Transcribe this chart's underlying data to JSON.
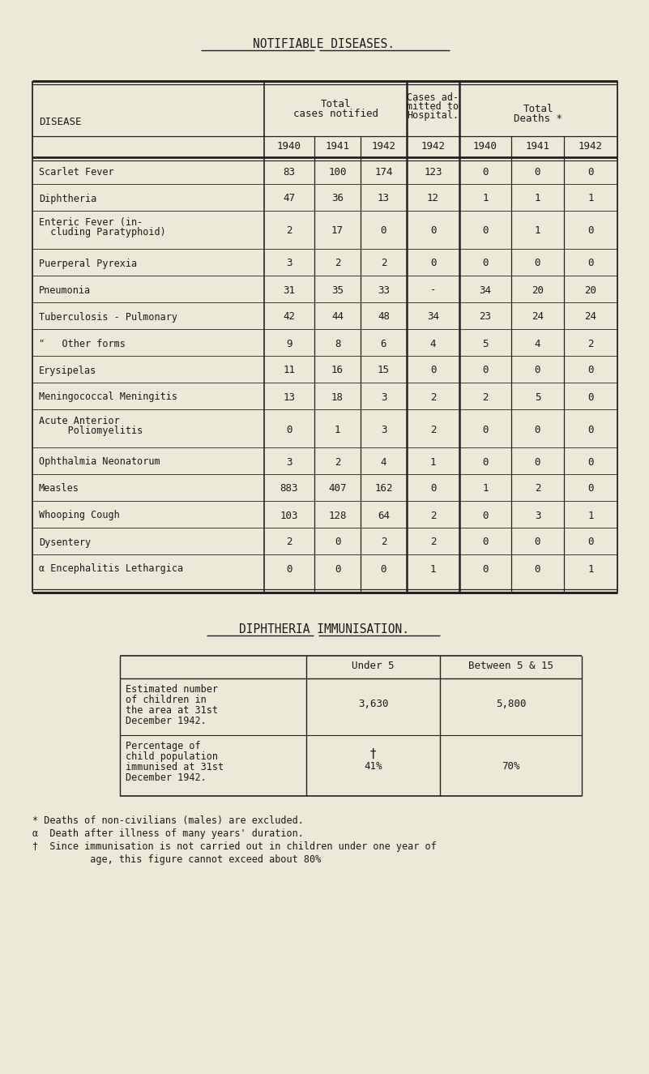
{
  "title": "NOTIFIABLE DISEASES.",
  "bg_color": "#ede9d8",
  "text_color": "#1a1a1a",
  "main_table": {
    "rows": [
      [
        "Scarlet Fever",
        "83",
        "100",
        "174",
        "123",
        "0",
        "0",
        "0"
      ],
      [
        "Diphtheria",
        "47",
        "36",
        "13",
        "12",
        "1",
        "1",
        "1"
      ],
      [
        "Enteric Fever (in-\n  cluding Paratyphoid)",
        "2",
        "17",
        "0",
        "0",
        "0",
        "1",
        "0"
      ],
      [
        "Puerperal Pyrexia",
        "3",
        "2",
        "2",
        "0",
        "0",
        "0",
        "0"
      ],
      [
        "Pneumonia",
        "31",
        "35",
        "33",
        "-",
        "34",
        "20",
        "20"
      ],
      [
        "Tuberculosis - Pulmonary",
        "42",
        "44",
        "48",
        "34",
        "23",
        "24",
        "24"
      ],
      [
        "\"   Other forms",
        "9",
        "8",
        "6",
        "4",
        "5",
        "4",
        "2"
      ],
      [
        "Erysipelas",
        "11",
        "16",
        "15",
        "0",
        "0",
        "0",
        "0"
      ],
      [
        "Meningococcal Meningitis",
        "13",
        "18",
        "3",
        "2",
        "2",
        "5",
        "0"
      ],
      [
        "Acute Anterior\n     Poliomyelitis",
        "0",
        "1",
        "3",
        "2",
        "0",
        "0",
        "0"
      ],
      [
        "Ophthalmia Neonatorum",
        "3",
        "2",
        "4",
        "1",
        "0",
        "0",
        "0"
      ],
      [
        "Measles",
        "883",
        "407",
        "162",
        "0",
        "1",
        "2",
        "0"
      ],
      [
        "Whooping Cough",
        "103",
        "128",
        "64",
        "2",
        "0",
        "3",
        "1"
      ],
      [
        "Dysentery",
        "2",
        "0",
        "2",
        "2",
        "0",
        "0",
        "0"
      ],
      [
        "α Encephalitis Lethargica",
        "0",
        "0",
        "0",
        "1",
        "0",
        "0",
        "1"
      ]
    ]
  },
  "imm_title": "DIPHTHERIA IMMUNISATION.",
  "footnotes": [
    "* Deaths of non-civilians (males) are excluded.",
    "α  Death after illness of many years' duration.",
    "†  Since immunisation is not carried out in children under one year of",
    "          age, this figure cannot exceed about 80%"
  ]
}
